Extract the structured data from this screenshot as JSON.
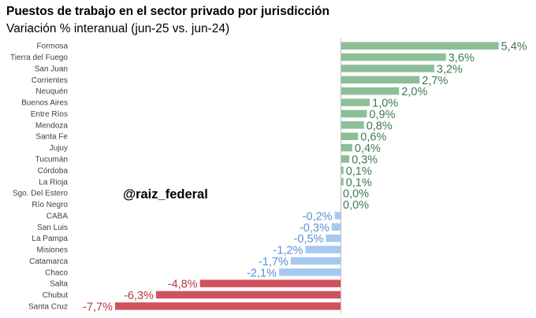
{
  "header": {
    "title": "Puestos de trabajo en el sector privado por jurisdicción",
    "subtitle": "Variación % interanual (jun-25 vs. jun-24)"
  },
  "watermark": "@raiz_federal",
  "colors": {
    "positive": "#8cbf98",
    "positive_text": "#3e7a52",
    "small_negative": "#a7c9f1",
    "small_negative_text": "#5b8fd6",
    "large_negative": "#d0515d",
    "large_negative_text": "#b83743",
    "axis": "#bfbfbf"
  },
  "chart_data": {
    "type": "bar",
    "orientation": "horizontal",
    "title": "Puestos de trabajo en el sector privado por jurisdicción",
    "subtitle": "Variación % interanual (jun-25 vs. jun-24)",
    "categories": [
      "Formosa",
      "Tierra del Fuego",
      "San Juan",
      "Corrientes",
      "Neuquén",
      "Buenos Aires",
      "Entre Ríos",
      "Mendoza",
      "Santa Fe",
      "Jujuy",
      "Tucumán",
      "Córdoba",
      "La Rioja",
      "Sgo. Del Estero",
      "Río Negro",
      "CABA",
      "San Luis",
      "La Pampa",
      "Misiones",
      "Catamarca",
      "Chaco",
      "Salta",
      "Chubut",
      "Santa Cruz"
    ],
    "values": [
      5.4,
      3.6,
      3.2,
      2.7,
      2.0,
      1.0,
      0.9,
      0.8,
      0.6,
      0.4,
      0.3,
      0.1,
      0.1,
      0.0,
      0.0,
      -0.2,
      -0.3,
      -0.5,
      -1.2,
      -1.7,
      -2.1,
      -4.8,
      -6.3,
      -7.7
    ],
    "labels": [
      "5,4%",
      "3,6%",
      "3,2%",
      "2,7%",
      "2,0%",
      "1,0%",
      "0,9%",
      "0,8%",
      "0,6%",
      "0,4%",
      "0,3%",
      "0,1%",
      "0,1%",
      "0,0%",
      "0,0%",
      "-0,2%",
      "-0,3%",
      "-0,5%",
      "-1,2%",
      "-1,7%",
      "-2,1%",
      "-4,8%",
      "-6,3%",
      "-7,7%"
    ],
    "xlim": [
      -7.7,
      5.4
    ],
    "unit": "%"
  }
}
